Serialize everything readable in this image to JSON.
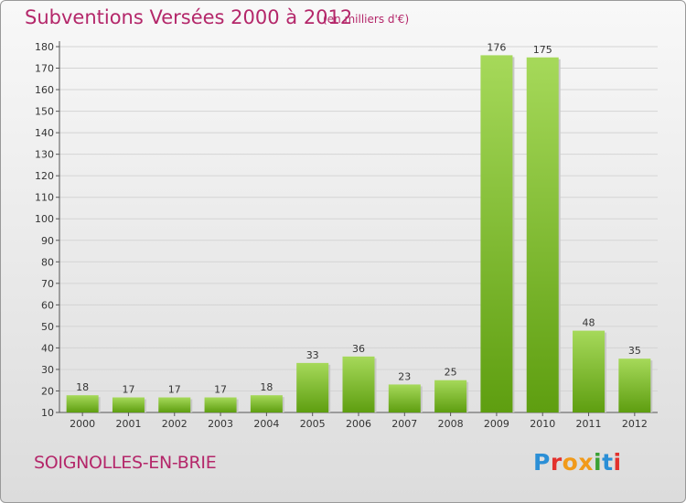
{
  "header": {
    "title": "Subventions Versées 2000 à 2012",
    "subtitle": "(en milliers d'€)"
  },
  "footer": {
    "commune": "SOIGNOLLES-EN-BRIE",
    "logo_text": "Proxiti",
    "logo_colors": [
      "#2b8fd6",
      "#e3312d",
      "#f19a1a",
      "#f19a1a",
      "#3aa135",
      "#2b8fd6",
      "#e3312d"
    ]
  },
  "colors": {
    "title": "#b4276a",
    "bar_light": "#a6d95a",
    "bar_dark": "#5e9e10"
  },
  "chart_data": {
    "type": "bar",
    "categories": [
      "2000",
      "2001",
      "2002",
      "2003",
      "2004",
      "2005",
      "2006",
      "2007",
      "2008",
      "2009",
      "2010",
      "2011",
      "2012"
    ],
    "values": [
      18,
      17,
      17,
      17,
      18,
      33,
      36,
      23,
      25,
      176,
      175,
      48,
      35
    ],
    "ylim": [
      10,
      180
    ],
    "yticks": [
      10,
      20,
      30,
      40,
      50,
      60,
      70,
      80,
      90,
      100,
      110,
      120,
      130,
      140,
      150,
      160,
      170,
      180
    ],
    "grid": true
  }
}
